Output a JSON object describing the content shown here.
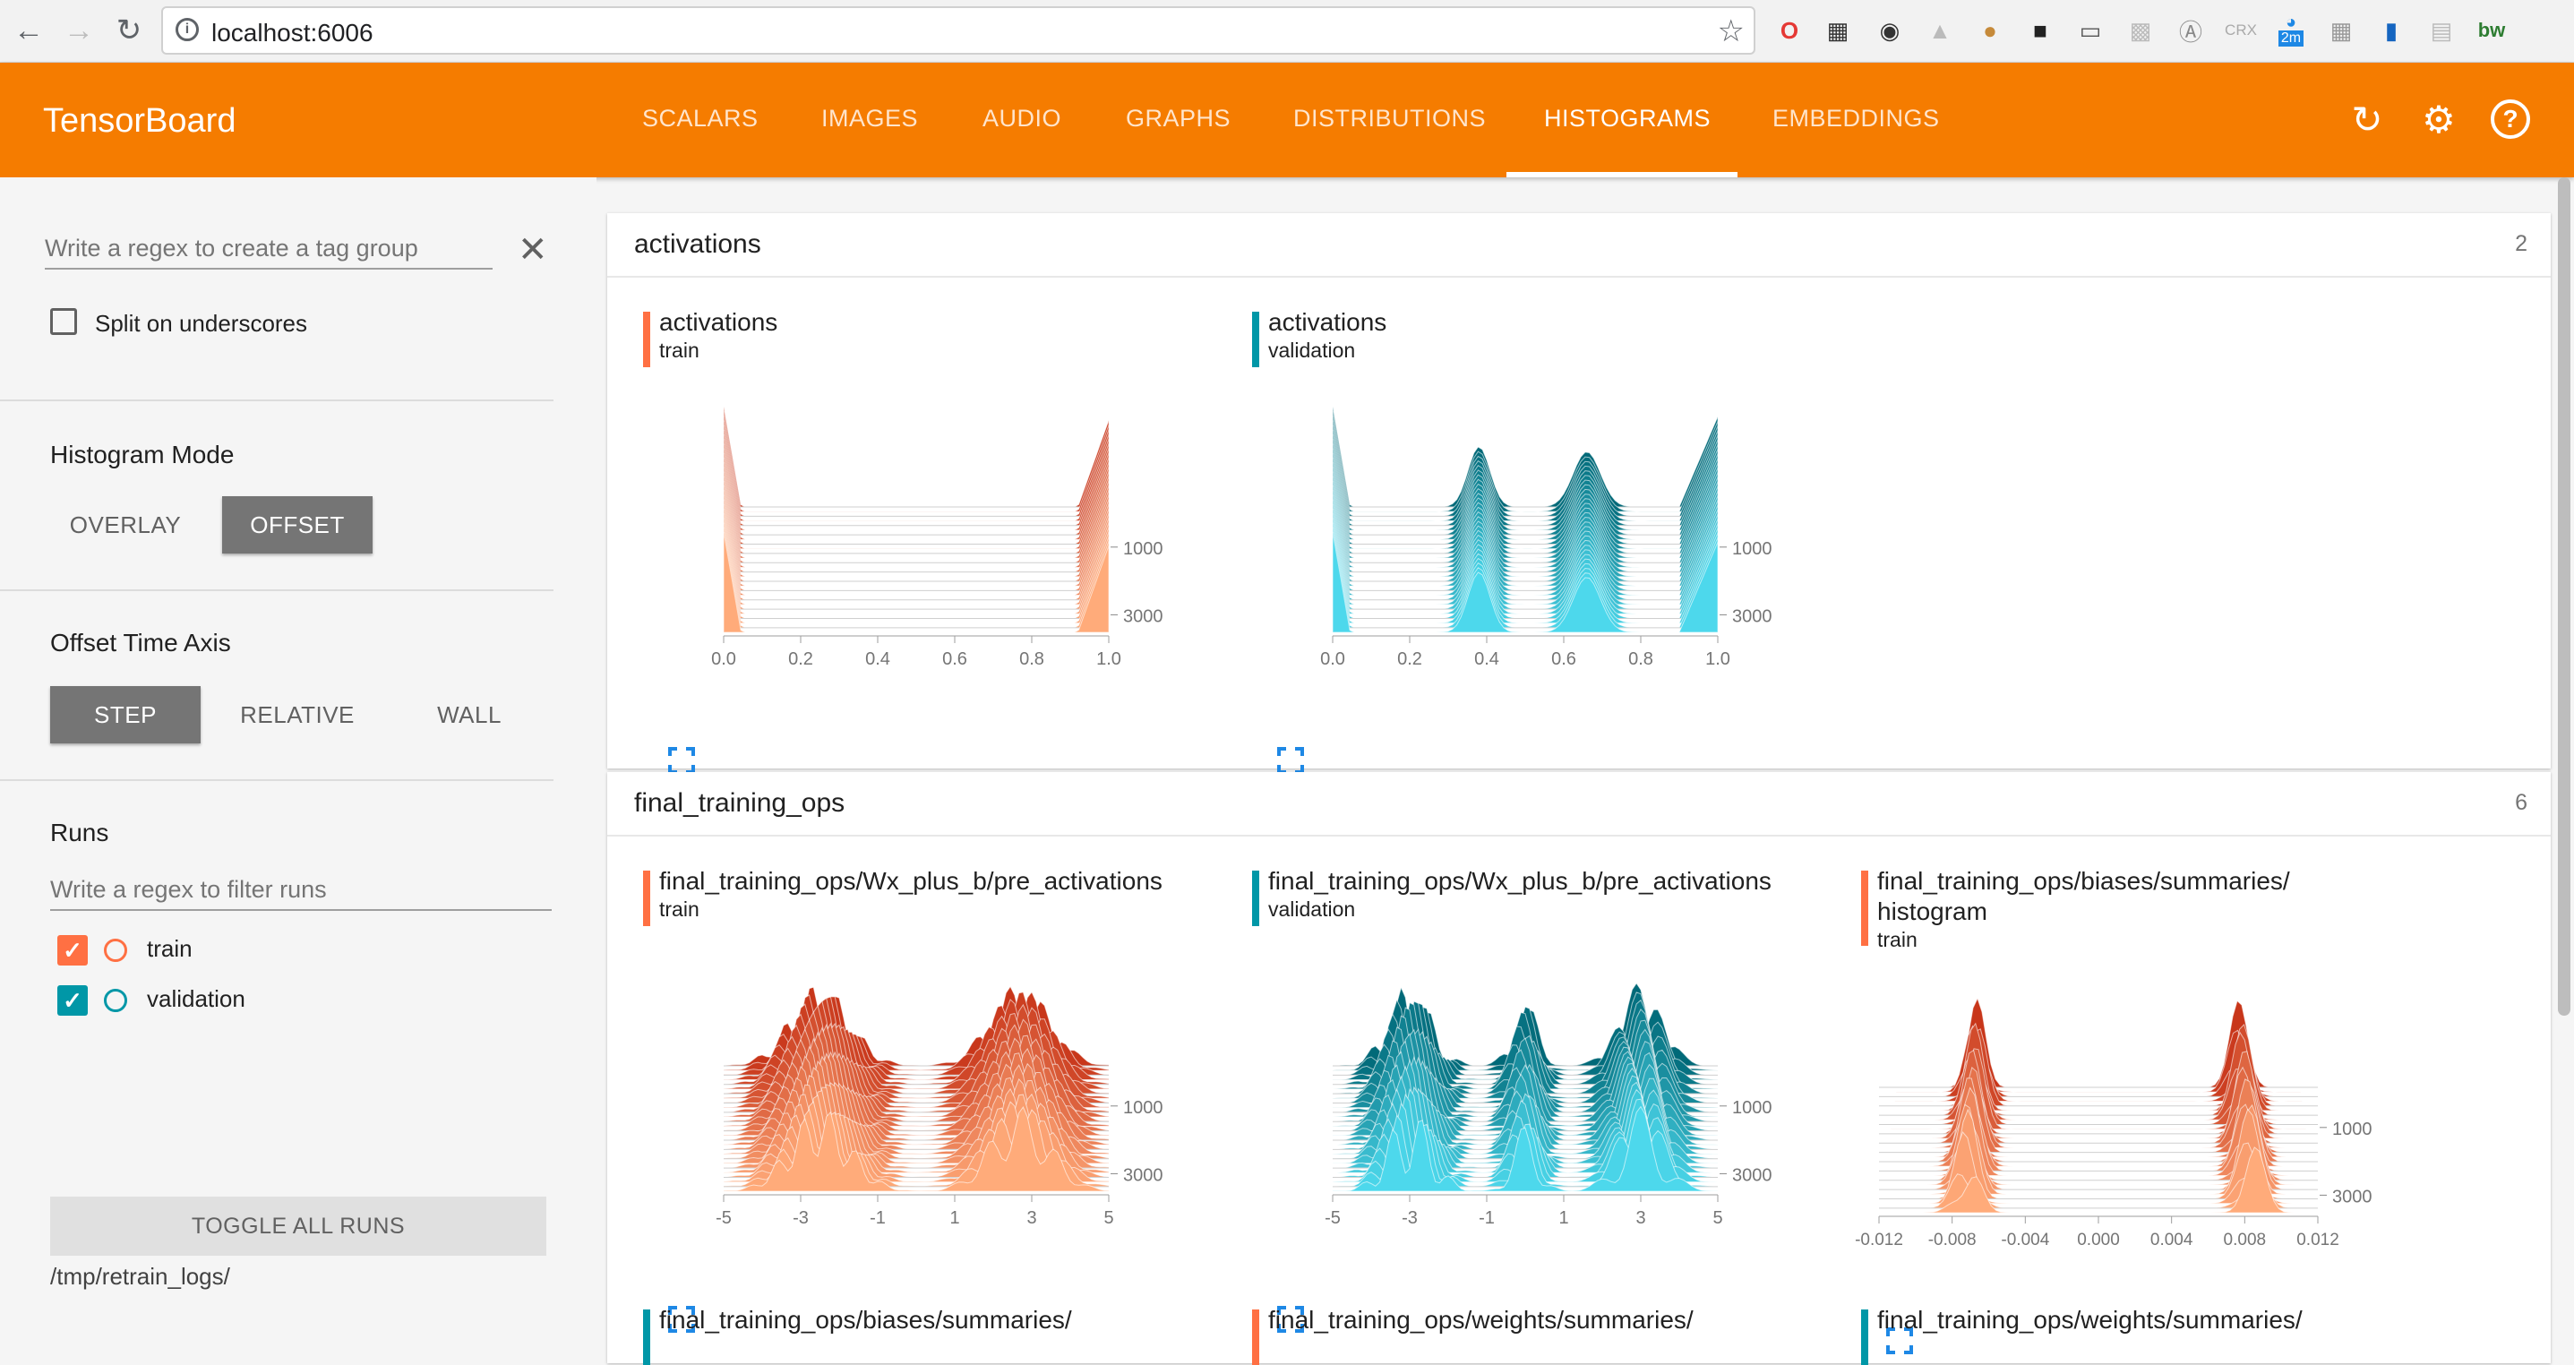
{
  "browser": {
    "url": "localhost:6006",
    "ext_badge": "2m",
    "ext_label_crx": "CRX",
    "ext_label_bw": "bw"
  },
  "app": {
    "title": "TensorBoard",
    "tabs": [
      {
        "label": "SCALARS"
      },
      {
        "label": "IMAGES"
      },
      {
        "label": "AUDIO"
      },
      {
        "label": "GRAPHS"
      },
      {
        "label": "DISTRIBUTIONS"
      },
      {
        "label": "HISTOGRAMS"
      },
      {
        "label": "EMBEDDINGS"
      }
    ],
    "active_tab": "HISTOGRAMS",
    "accent": "#f57c00"
  },
  "sidebar": {
    "tag_regex_placeholder": "Write a regex to create a tag group",
    "split_underscores": "Split on underscores",
    "histogram_mode": {
      "label": "Histogram Mode",
      "options": [
        "OVERLAY",
        "OFFSET"
      ],
      "selected": "OFFSET"
    },
    "offset_time_axis": {
      "label": "Offset Time Axis",
      "options": [
        "STEP",
        "RELATIVE",
        "WALL"
      ],
      "selected": "STEP"
    },
    "runs": {
      "label": "Runs",
      "filter_placeholder": "Write a regex to filter runs",
      "items": [
        {
          "name": "train",
          "checked": true,
          "color": "#ff7043"
        },
        {
          "name": "validation",
          "checked": true,
          "color": "#0097a7"
        }
      ]
    },
    "toggle_all": "TOGGLE ALL RUNS",
    "logdir": "/tmp/retrain_logs/"
  },
  "groups": [
    {
      "name": "activations",
      "count": "2",
      "charts": [
        {
          "tag": "activations",
          "run": "train",
          "color": "#ff7043",
          "dark": "#c8361a",
          "light": "#ffab7a",
          "x_ticks": [
            "0.0",
            "0.2",
            "0.4",
            "0.6",
            "0.8",
            "1.0"
          ],
          "step_ticks": [
            "1000",
            "3000"
          ]
        },
        {
          "tag": "activations",
          "run": "validation",
          "color": "#0097a7",
          "dark": "#006978",
          "light": "#4dd8ec",
          "x_ticks": [
            "0.0",
            "0.2",
            "0.4",
            "0.6",
            "0.8",
            "1.0"
          ],
          "step_ticks": [
            "1000",
            "3000"
          ]
        }
      ]
    },
    {
      "name": "final_training_ops",
      "count": "6",
      "charts": [
        {
          "tag": "final_training_ops/Wx_plus_b/pre_activations",
          "run": "train",
          "color": "#ff7043",
          "dark": "#c8361a",
          "light": "#ffab7a",
          "x_ticks": [
            "-5",
            "-3",
            "-1",
            "1",
            "3",
            "5"
          ],
          "step_ticks": [
            "1000",
            "3000"
          ]
        },
        {
          "tag": "final_training_ops/Wx_plus_b/pre_activations",
          "run": "validation",
          "color": "#0097a7",
          "dark": "#006978",
          "light": "#4dd8ec",
          "x_ticks": [
            "-5",
            "-3",
            "-1",
            "1",
            "3",
            "5"
          ],
          "step_ticks": [
            "1000",
            "3000"
          ]
        },
        {
          "tag": "final_training_ops/biases/summaries/",
          "tag2": "histogram",
          "run": "train",
          "color": "#ff7043",
          "dark": "#c8361a",
          "light": "#ffab7a",
          "x_ticks": [
            "-0.012",
            "-0.008",
            "-0.004",
            "0.000",
            "0.004",
            "0.008",
            "0.012"
          ],
          "step_ticks": [
            "1000",
            "3000"
          ]
        }
      ],
      "partial_titles": [
        {
          "tag": "final_training_ops/biases/summaries/",
          "color": "#0097a7"
        },
        {
          "tag": "final_training_ops/weights/summaries/",
          "color": "#ff7043"
        },
        {
          "tag": "final_training_ops/weights/summaries/",
          "color": "#0097a7"
        }
      ]
    }
  ]
}
